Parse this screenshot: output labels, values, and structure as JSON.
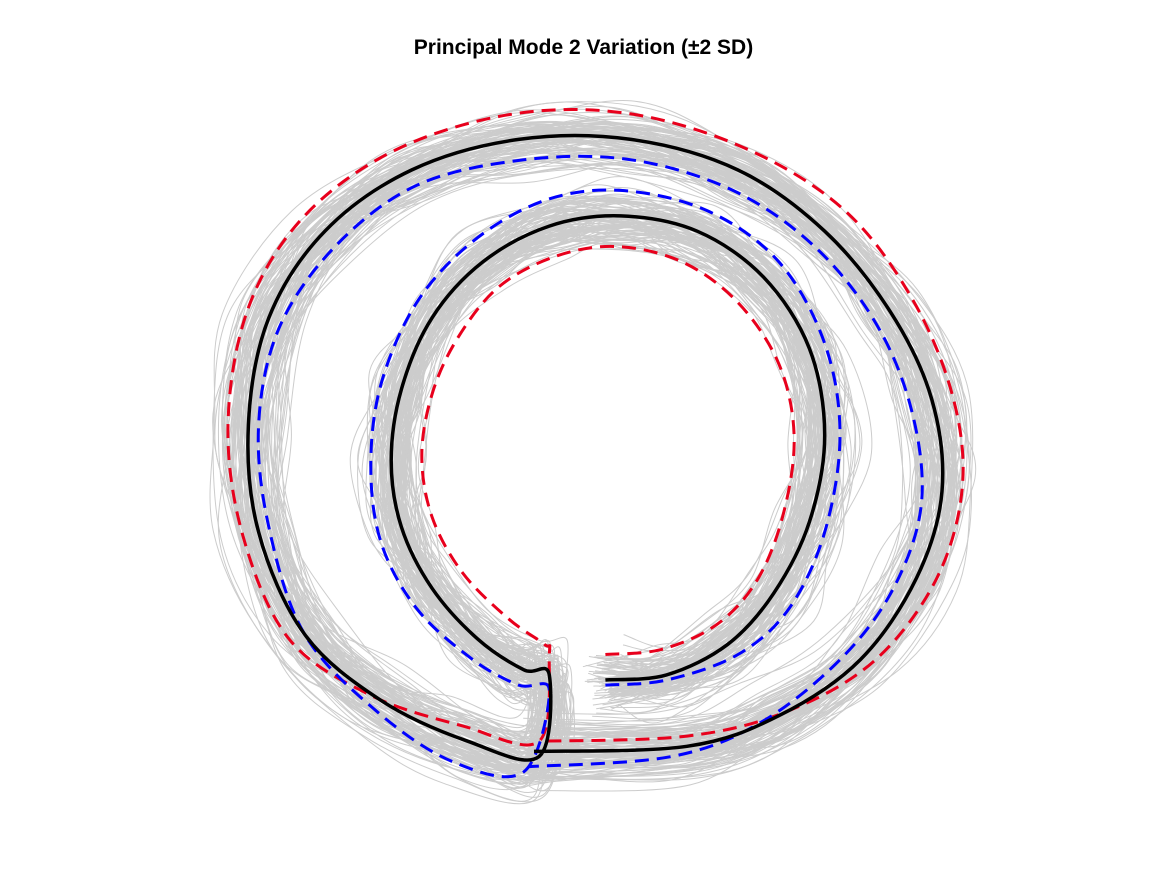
{
  "chart_data": {
    "type": "line",
    "title": "Principal Mode 2 Variation (±2 SD)",
    "xlabel": "",
    "ylabel": "",
    "axes_visible": false,
    "grid": false,
    "legend": "none",
    "aspect": "equal",
    "xlim": [
      -1.1,
      1.1
    ],
    "ylim": [
      -1.1,
      1.1
    ],
    "sample_shapes": {
      "count": 120,
      "color": "#cccccc",
      "style": "solid-thin",
      "description_visible": false
    },
    "series": [
      {
        "role": "mean",
        "color": "#000000",
        "style": "solid",
        "x": [
          0.04,
          0.16,
          0.28,
          0.37,
          0.44,
          0.47,
          0.44,
          0.35,
          0.22,
          0.07,
          -0.07,
          -0.2,
          -0.3,
          -0.36,
          -0.38,
          -0.36,
          -0.3,
          -0.21,
          -0.12,
          -0.07,
          -0.09,
          -0.23,
          -0.4,
          -0.55,
          -0.64,
          -0.66,
          -0.62,
          -0.51,
          -0.34,
          -0.13,
          0.09,
          0.3,
          0.47,
          0.6,
          0.68,
          0.7,
          0.65,
          0.54,
          0.38,
          0.2,
          -0.1
        ],
        "y": [
          -0.5,
          -0.49,
          -0.43,
          -0.33,
          -0.19,
          -0.02,
          0.15,
          0.29,
          0.38,
          0.41,
          0.39,
          0.32,
          0.21,
          0.07,
          -0.07,
          -0.2,
          -0.32,
          -0.42,
          -0.48,
          -0.49,
          -0.65,
          -0.62,
          -0.54,
          -0.41,
          -0.21,
          0.0,
          0.21,
          0.38,
          0.5,
          0.56,
          0.56,
          0.5,
          0.38,
          0.22,
          0.05,
          -0.13,
          -0.3,
          -0.46,
          -0.57,
          -0.63,
          -0.64
        ]
      },
      {
        "role": "mean + 2 SD",
        "color": "#e8001c",
        "style": "dashed",
        "x": [
          0.04,
          0.15,
          0.26,
          0.34,
          0.39,
          0.41,
          0.38,
          0.3,
          0.19,
          0.06,
          -0.06,
          -0.17,
          -0.25,
          -0.3,
          -0.32,
          -0.3,
          -0.24,
          -0.15,
          -0.08,
          -0.07,
          -0.09,
          -0.24,
          -0.42,
          -0.58,
          -0.67,
          -0.7,
          -0.66,
          -0.55,
          -0.37,
          -0.14,
          0.09,
          0.32,
          0.51,
          0.64,
          0.72,
          0.74,
          0.69,
          0.57,
          0.4,
          0.2,
          -0.09
        ],
        "y": [
          -0.45,
          -0.44,
          -0.39,
          -0.3,
          -0.17,
          -0.02,
          0.12,
          0.24,
          0.32,
          0.35,
          0.33,
          0.27,
          0.17,
          0.06,
          -0.06,
          -0.18,
          -0.29,
          -0.38,
          -0.43,
          -0.45,
          -0.62,
          -0.59,
          -0.53,
          -0.42,
          -0.22,
          0.0,
          0.23,
          0.41,
          0.54,
          0.61,
          0.61,
          0.54,
          0.42,
          0.25,
          0.06,
          -0.12,
          -0.3,
          -0.46,
          -0.56,
          -0.61,
          -0.62
        ]
      },
      {
        "role": "mean - 2 SD",
        "color": "#0000ff",
        "style": "dashed",
        "x": [
          0.04,
          0.16,
          0.3,
          0.4,
          0.47,
          0.5,
          0.47,
          0.38,
          0.24,
          0.07,
          -0.08,
          -0.22,
          -0.33,
          -0.4,
          -0.42,
          -0.4,
          -0.33,
          -0.22,
          -0.13,
          -0.07,
          -0.12,
          -0.26,
          -0.41,
          -0.55,
          -0.62,
          -0.64,
          -0.6,
          -0.49,
          -0.33,
          -0.12,
          0.09,
          0.29,
          0.45,
          0.57,
          0.64,
          0.66,
          0.61,
          0.51,
          0.35,
          0.17,
          -0.11
        ],
        "y": [
          -0.51,
          -0.5,
          -0.45,
          -0.36,
          -0.21,
          -0.02,
          0.16,
          0.32,
          0.42,
          0.46,
          0.44,
          0.36,
          0.24,
          0.08,
          -0.08,
          -0.23,
          -0.36,
          -0.46,
          -0.51,
          -0.52,
          -0.68,
          -0.66,
          -0.56,
          -0.41,
          -0.2,
          0.0,
          0.19,
          0.35,
          0.47,
          0.52,
          0.52,
          0.46,
          0.35,
          0.2,
          0.03,
          -0.15,
          -0.31,
          -0.45,
          -0.58,
          -0.65,
          -0.67
        ]
      }
    ]
  }
}
